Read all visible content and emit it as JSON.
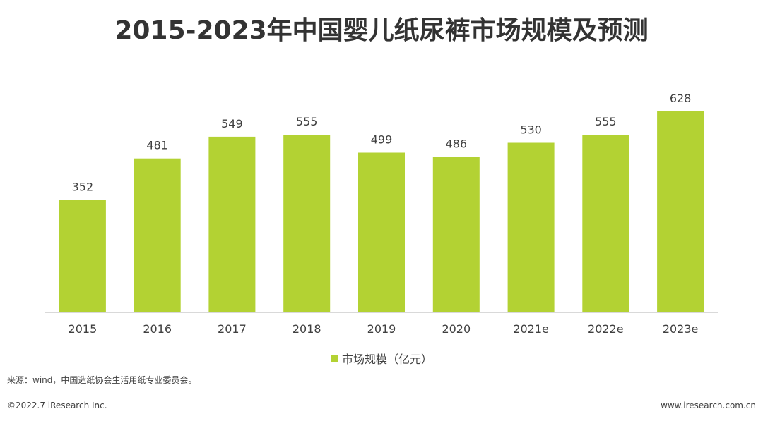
{
  "title": "2015-2023年中国婴儿纸尿裤市场规模及预测",
  "chart_data": {
    "type": "bar",
    "categories": [
      "2015",
      "2016",
      "2017",
      "2018",
      "2019",
      "2020",
      "2021e",
      "2022e",
      "2023e"
    ],
    "series": [
      {
        "name": "市场规模（亿元）",
        "values": [
          352,
          481,
          549,
          555,
          499,
          486,
          530,
          555,
          628
        ],
        "color": "#b3d233"
      }
    ],
    "data_labels": true,
    "y_axis_visible": false,
    "ylim": [
      0,
      700
    ],
    "grid": false,
    "legend_position": "bottom"
  },
  "legend": {
    "label": "市场规模（亿元）"
  },
  "source": "来源：wind，中国造纸协会生活用纸专业委员会。",
  "footer": {
    "copyright": "©2022.7 iResearch Inc.",
    "website": "www.iresearch.com.cn"
  },
  "colors": {
    "bar": "#b3d233",
    "axis": "#d9d9d9",
    "text": "#404040"
  }
}
